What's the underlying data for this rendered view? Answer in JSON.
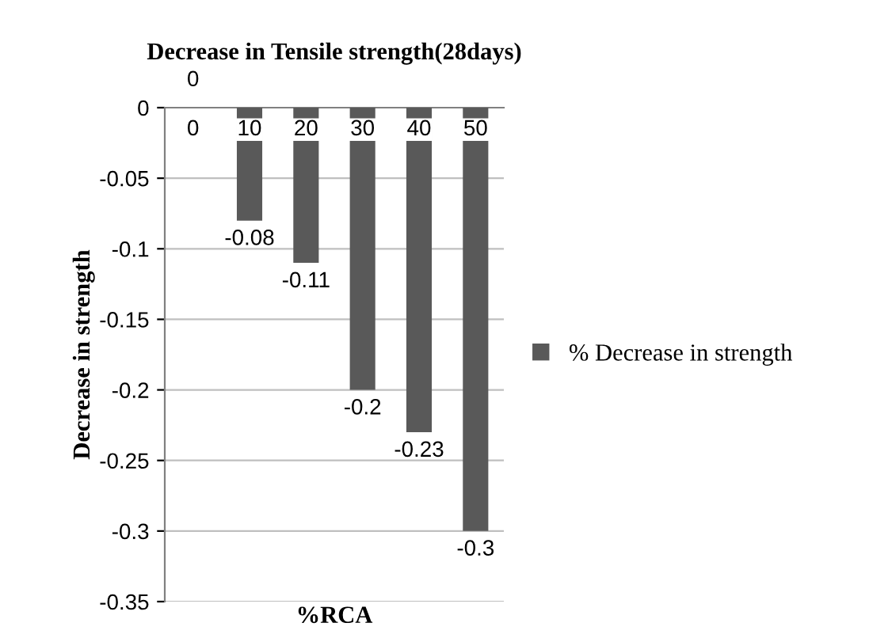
{
  "chart_data": {
    "type": "bar",
    "title": "Decrease in Tensile strength(28days)",
    "xlabel": "%RCA",
    "ylabel": "Decrease in strength",
    "categories": [
      "0",
      "10",
      "20",
      "30",
      "40",
      "50"
    ],
    "series": [
      {
        "name": "% Decrease in strength",
        "color": "#595959",
        "values": [
          0,
          -0.08,
          -0.11,
          -0.2,
          -0.23,
          -0.3
        ]
      }
    ],
    "ylim": [
      -0.35,
      0
    ],
    "yticks": [
      -0.35,
      -0.3,
      -0.25,
      -0.2,
      -0.15,
      -0.1,
      -0.05,
      0
    ],
    "grid": "y",
    "legend": "right",
    "data_labels": true
  }
}
